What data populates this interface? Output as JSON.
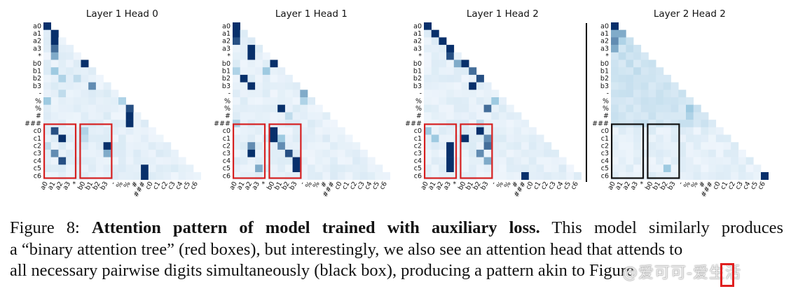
{
  "figure": {
    "panel_titles": [
      "Layer 1 Head 0",
      "Layer 1 Head 1",
      "Layer 1 Head 2",
      "Layer 2 Head 2"
    ],
    "tokens": [
      "a0",
      "a1",
      "a2",
      "a3",
      "*",
      "b0",
      "b1",
      "b2",
      "b3",
      "-",
      "%",
      "%",
      "#",
      "###",
      "c0",
      "c1",
      "c2",
      "c3",
      "c4",
      "c5",
      "c6"
    ],
    "colors": {
      "highlight_red": "#d62020",
      "highlight_black": "#111111",
      "cmap_light": "#f2f7fd",
      "cmap_dark": "#08306b",
      "divider": "#000000"
    }
  },
  "chart_data": [
    {
      "type": "heatmap",
      "title": "Layer 1 Head 0",
      "x": [
        "a0",
        "a1",
        "a2",
        "a3",
        "*",
        "b0",
        "b1",
        "b2",
        "b3",
        "-",
        "%",
        "%",
        "#",
        "###",
        "c0",
        "c1",
        "c2",
        "c3",
        "c4",
        "c5",
        "c6"
      ],
      "y": [
        "a0",
        "a1",
        "a2",
        "a3",
        "*",
        "b0",
        "b1",
        "b2",
        "b3",
        "-",
        "%",
        "%",
        "#",
        "###",
        "c0",
        "c1",
        "c2",
        "c3",
        "c4",
        "c5",
        "c6"
      ],
      "mask": "lower-triangular",
      "highlight_boxes": "red",
      "strong": [
        [
          0,
          0,
          1
        ],
        [
          1,
          1,
          1
        ],
        [
          2,
          1,
          1
        ],
        [
          3,
          1,
          0.8
        ],
        [
          4,
          1,
          0.6
        ],
        [
          5,
          5,
          1
        ],
        [
          6,
          1,
          0.5
        ],
        [
          7,
          2,
          0.4
        ],
        [
          7,
          4,
          0.3
        ],
        [
          8,
          6,
          0.7
        ],
        [
          9,
          2,
          0.3
        ],
        [
          10,
          0,
          0.5
        ],
        [
          10,
          10,
          0.4
        ],
        [
          11,
          11,
          0.9
        ],
        [
          12,
          11,
          1
        ],
        [
          13,
          11,
          1
        ],
        [
          14,
          1,
          0.9
        ],
        [
          14,
          5,
          0.4
        ],
        [
          15,
          2,
          1
        ],
        [
          15,
          5,
          0.3
        ],
        [
          16,
          0,
          0.3
        ],
        [
          16,
          8,
          1
        ],
        [
          17,
          1,
          0.7
        ],
        [
          17,
          8,
          0.6
        ],
        [
          18,
          2,
          0.9
        ],
        [
          20,
          13,
          1
        ],
        [
          19,
          13,
          1
        ]
      ]
    },
    {
      "type": "heatmap",
      "title": "Layer 1 Head 1",
      "x": [
        "a0",
        "a1",
        "a2",
        "a3",
        "*",
        "b0",
        "b1",
        "b2",
        "b3",
        "-",
        "%",
        "%",
        "#",
        "###",
        "c0",
        "c1",
        "c2",
        "c3",
        "c4",
        "c5",
        "c6"
      ],
      "y": [
        "a0",
        "a1",
        "a2",
        "a3",
        "*",
        "b0",
        "b1",
        "b2",
        "b3",
        "-",
        "%",
        "%",
        "#",
        "###",
        "c0",
        "c1",
        "c2",
        "c3",
        "c4",
        "c5",
        "c6"
      ],
      "mask": "lower-triangular",
      "highlight_boxes": "red",
      "strong": [
        [
          0,
          0,
          1
        ],
        [
          1,
          0,
          1
        ],
        [
          2,
          0,
          0.9
        ],
        [
          3,
          2,
          1
        ],
        [
          4,
          2,
          1
        ],
        [
          5,
          5,
          1
        ],
        [
          6,
          0,
          0.4
        ],
        [
          6,
          4,
          0.5
        ],
        [
          7,
          1,
          1
        ],
        [
          8,
          2,
          1
        ],
        [
          9,
          9,
          0.6
        ],
        [
          10,
          9,
          0.4
        ],
        [
          11,
          6,
          1
        ],
        [
          12,
          7,
          0.3
        ],
        [
          13,
          0,
          0.4
        ],
        [
          14,
          5,
          1
        ],
        [
          15,
          5,
          1
        ],
        [
          15,
          6,
          0.5
        ],
        [
          16,
          2,
          0.7
        ],
        [
          16,
          6,
          0.7
        ],
        [
          17,
          2,
          1
        ],
        [
          17,
          7,
          0.9
        ],
        [
          18,
          8,
          1
        ],
        [
          19,
          3,
          0.6
        ],
        [
          19,
          8,
          1
        ]
      ]
    },
    {
      "type": "heatmap",
      "title": "Layer 1 Head 2",
      "x": [
        "a0",
        "a1",
        "a2",
        "a3",
        "*",
        "b0",
        "b1",
        "b2",
        "b3",
        "-",
        "%",
        "%",
        "#",
        "###",
        "c0",
        "c1",
        "c2",
        "c3",
        "c4",
        "c5",
        "c6"
      ],
      "y": [
        "a0",
        "a1",
        "a2",
        "a3",
        "*",
        "b0",
        "b1",
        "b2",
        "b3",
        "-",
        "%",
        "%",
        "#",
        "###",
        "c0",
        "c1",
        "c2",
        "c3",
        "c4",
        "c5",
        "c6"
      ],
      "mask": "lower-triangular",
      "highlight_boxes": "red",
      "strong": [
        [
          0,
          0,
          1
        ],
        [
          1,
          1,
          1
        ],
        [
          2,
          2,
          1
        ],
        [
          3,
          3,
          1
        ],
        [
          4,
          3,
          0.9
        ],
        [
          5,
          4,
          0.6
        ],
        [
          5,
          5,
          1
        ],
        [
          6,
          6,
          0.8
        ],
        [
          7,
          7,
          0.9
        ],
        [
          8,
          6,
          1
        ],
        [
          10,
          9,
          0.5
        ],
        [
          11,
          8,
          0.8
        ],
        [
          13,
          7,
          0.3
        ],
        [
          14,
          0,
          0.5
        ],
        [
          14,
          7,
          1
        ],
        [
          15,
          1,
          0.5
        ],
        [
          15,
          5,
          1
        ],
        [
          15,
          8,
          0.7
        ],
        [
          16,
          3,
          1
        ],
        [
          16,
          8,
          0.8
        ],
        [
          17,
          3,
          1
        ],
        [
          17,
          7,
          0.7
        ],
        [
          18,
          3,
          1
        ],
        [
          18,
          8,
          0.6
        ],
        [
          19,
          3,
          1
        ],
        [
          20,
          13,
          1
        ]
      ]
    },
    {
      "type": "heatmap",
      "title": "Layer 2 Head 2",
      "x": [
        "a0",
        "a1",
        "a2",
        "a3",
        "*",
        "b0",
        "b1",
        "b2",
        "b3",
        "-",
        "%",
        "%",
        "#",
        "###",
        "c0",
        "c1",
        "c2",
        "c3",
        "c4",
        "c5",
        "c6"
      ],
      "y": [
        "a0",
        "a1",
        "a2",
        "a3",
        "*",
        "b0",
        "b1",
        "b2",
        "b3",
        "-",
        "%",
        "%",
        "#",
        "###",
        "c0",
        "c1",
        "c2",
        "c3",
        "c4",
        "c5",
        "c6"
      ],
      "mask": "lower-triangular",
      "highlight_boxes": "black",
      "strong": [
        [
          0,
          0,
          1
        ],
        [
          1,
          0,
          0.6
        ],
        [
          1,
          1,
          0.6
        ],
        [
          2,
          0,
          0.7
        ],
        [
          2,
          1,
          0.4
        ],
        [
          3,
          0,
          0.6
        ],
        [
          3,
          2,
          0.3
        ],
        [
          4,
          1,
          0.3
        ],
        [
          5,
          2,
          0.3
        ],
        [
          6,
          3,
          0.3
        ],
        [
          11,
          10,
          0.5
        ],
        [
          12,
          10,
          0.4
        ],
        [
          19,
          7,
          0.5
        ],
        [
          20,
          20,
          1
        ]
      ]
    }
  ],
  "caption": {
    "label": "Figure 8:",
    "bold": "Attention pattern of model trained with auxiliary loss.",
    "line1_rest": "This model similarly produces",
    "line2": "a “binary attention tree” (red boxes), but interestingly, we also see an attention head that attends to",
    "line3": "all necessary pairwise digits simultaneously (black box), producing a pattern akin to Figure"
  },
  "watermark": "@爱可可-爱生活"
}
